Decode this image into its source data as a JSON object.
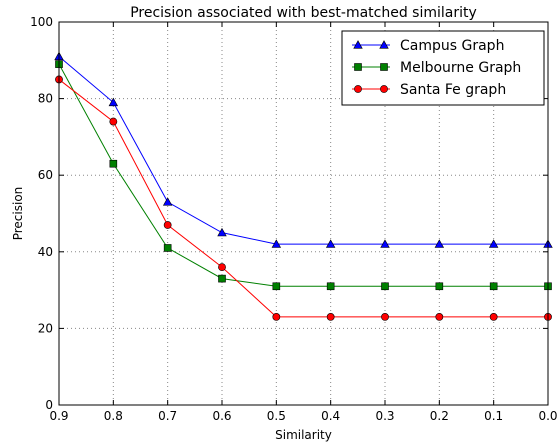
{
  "chart_data": {
    "type": "line",
    "title": "Precision associated with best-matched similarity",
    "xlabel": "Similarity",
    "ylabel": "Precision",
    "x": [
      0.9,
      0.8,
      0.7,
      0.6,
      0.5,
      0.4,
      0.3,
      0.2,
      0.1,
      0.0
    ],
    "x_tick_labels": [
      "0.9",
      "0.8",
      "0.7",
      "0.6",
      "0.5",
      "0.4",
      "0.3",
      "0.2",
      "0.1",
      "0.0"
    ],
    "y_ticks": [
      0,
      20,
      40,
      60,
      80,
      100
    ],
    "xlim": [
      0.9,
      0.0
    ],
    "ylim": [
      0,
      100
    ],
    "grid": true,
    "legend_position": "top-right",
    "series": [
      {
        "name": "Campus Graph",
        "color": "#0000ff",
        "marker": "triangle",
        "values": [
          91,
          79,
          53,
          45,
          42,
          42,
          42,
          42,
          42,
          42
        ]
      },
      {
        "name": "Melbourne Graph",
        "color": "#008000",
        "marker": "square",
        "values": [
          89,
          63,
          41,
          33,
          31,
          31,
          31,
          31,
          31,
          31
        ]
      },
      {
        "name": "Santa Fe graph",
        "color": "#ff0000",
        "marker": "circle",
        "values": [
          85,
          74,
          47,
          36,
          23,
          23,
          23,
          23,
          23,
          23
        ]
      }
    ]
  }
}
